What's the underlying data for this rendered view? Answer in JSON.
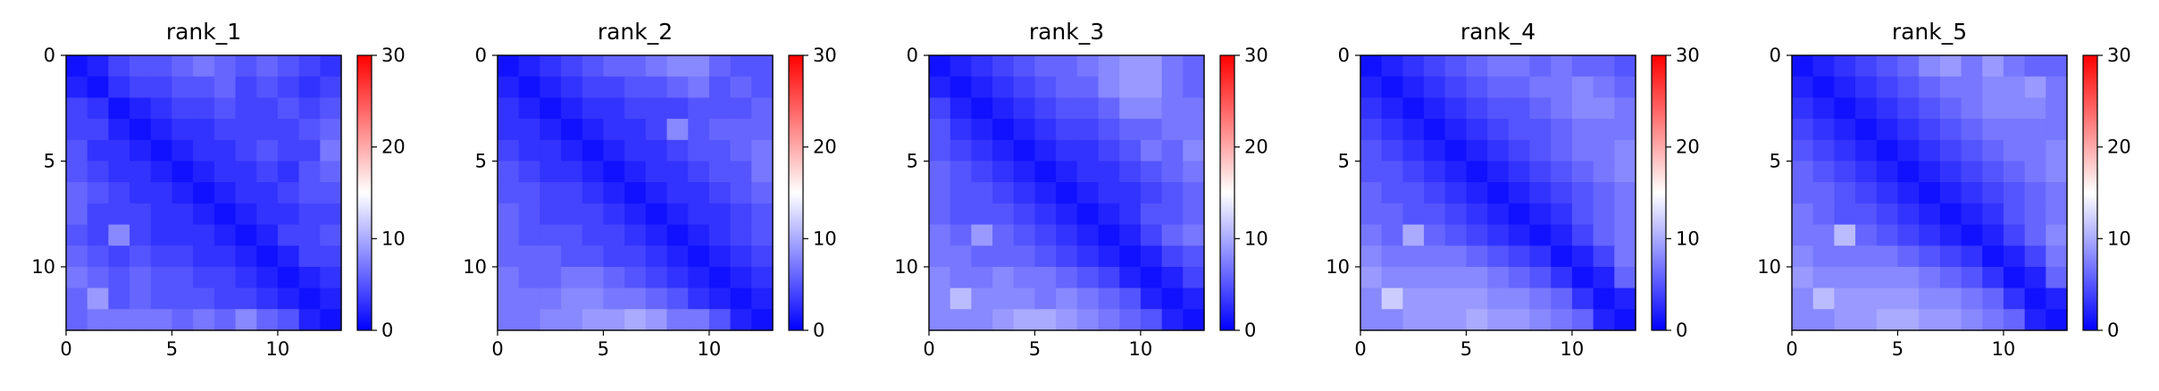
{
  "chart_data": [
    {
      "type": "heatmap",
      "title": "rank_1",
      "size": 13,
      "xticks": [
        "0",
        "5",
        "10"
      ],
      "yticks": [
        "0",
        "5",
        "10"
      ],
      "xlim": [
        0,
        13
      ],
      "ylim": [
        13,
        0
      ],
      "colorbar": {
        "colormap": "bwr",
        "vmin": 0,
        "vmax": 30,
        "ticks": [
          "0",
          "10",
          "20",
          "30"
        ]
      },
      "values": [
        [
          1,
          2,
          4,
          5,
          5,
          6,
          7,
          6,
          5,
          6,
          5,
          4,
          3
        ],
        [
          2,
          1,
          3,
          4,
          4,
          5,
          5,
          6,
          4,
          5,
          4,
          3,
          4
        ],
        [
          4,
          3,
          1,
          2,
          3,
          4,
          4,
          5,
          4,
          4,
          5,
          4,
          5
        ],
        [
          4,
          4,
          2,
          1,
          2,
          3,
          3,
          4,
          4,
          4,
          4,
          5,
          6
        ],
        [
          5,
          3,
          3,
          2,
          1,
          2,
          3,
          3,
          4,
          5,
          4,
          4,
          7
        ],
        [
          5,
          4,
          3,
          3,
          2,
          1,
          2,
          3,
          3,
          4,
          3,
          5,
          6
        ],
        [
          6,
          5,
          4,
          3,
          3,
          2,
          1,
          2,
          3,
          3,
          4,
          5,
          5
        ],
        [
          6,
          4,
          4,
          4,
          3,
          3,
          2,
          1,
          2,
          3,
          3,
          4,
          4
        ],
        [
          5,
          4,
          8,
          4,
          3,
          3,
          3,
          2,
          1,
          2,
          4,
          4,
          5
        ],
        [
          6,
          5,
          4,
          5,
          4,
          4,
          3,
          3,
          2,
          1,
          2,
          4,
          4
        ],
        [
          7,
          6,
          5,
          6,
          5,
          5,
          4,
          4,
          3,
          2,
          1,
          2,
          3
        ],
        [
          6,
          9,
          5,
          6,
          5,
          5,
          5,
          4,
          4,
          3,
          2,
          1,
          2
        ],
        [
          6,
          7,
          7,
          7,
          7,
          6,
          7,
          6,
          8,
          6,
          5,
          2,
          1
        ]
      ]
    },
    {
      "type": "heatmap",
      "title": "rank_2",
      "size": 13,
      "xticks": [
        "0",
        "5",
        "10"
      ],
      "yticks": [
        "0",
        "5",
        "10"
      ],
      "xlim": [
        0,
        13
      ],
      "ylim": [
        13,
        0
      ],
      "colorbar": {
        "colormap": "bwr",
        "vmin": 0,
        "vmax": 30,
        "ticks": [
          "0",
          "10",
          "20",
          "30"
        ]
      },
      "values": [
        [
          1,
          2,
          3,
          4,
          5,
          6,
          6,
          7,
          8,
          8,
          6,
          5,
          5
        ],
        [
          2,
          1,
          2,
          3,
          4,
          4,
          5,
          5,
          6,
          7,
          5,
          6,
          5
        ],
        [
          3,
          2,
          1,
          2,
          3,
          3,
          4,
          4,
          4,
          5,
          5,
          5,
          6
        ],
        [
          3,
          3,
          2,
          1,
          2,
          3,
          3,
          4,
          8,
          5,
          6,
          6,
          6
        ],
        [
          4,
          3,
          3,
          2,
          1,
          2,
          3,
          3,
          4,
          5,
          5,
          6,
          7
        ],
        [
          5,
          4,
          3,
          3,
          2,
          1,
          2,
          3,
          3,
          4,
          5,
          5,
          7
        ],
        [
          5,
          5,
          4,
          4,
          3,
          2,
          1,
          2,
          3,
          3,
          4,
          5,
          6
        ],
        [
          6,
          5,
          4,
          4,
          4,
          3,
          2,
          1,
          2,
          3,
          3,
          4,
          5
        ],
        [
          6,
          5,
          5,
          5,
          4,
          4,
          3,
          2,
          1,
          2,
          3,
          4,
          5
        ],
        [
          6,
          6,
          6,
          5,
          5,
          4,
          4,
          3,
          2,
          1,
          2,
          3,
          4
        ],
        [
          7,
          6,
          6,
          7,
          7,
          6,
          5,
          4,
          3,
          2,
          1,
          2,
          3
        ],
        [
          7,
          7,
          7,
          8,
          8,
          7,
          7,
          6,
          5,
          3,
          2,
          1,
          2
        ],
        [
          7,
          7,
          8,
          8,
          9,
          9,
          10,
          9,
          7,
          7,
          5,
          2,
          1
        ]
      ]
    },
    {
      "type": "heatmap",
      "title": "rank_3",
      "size": 13,
      "xticks": [
        "0",
        "5",
        "10"
      ],
      "yticks": [
        "0",
        "5",
        "10"
      ],
      "xlim": [
        0,
        13
      ],
      "ylim": [
        13,
        0
      ],
      "colorbar": {
        "colormap": "bwr",
        "vmin": 0,
        "vmax": 30,
        "ticks": [
          "0",
          "10",
          "20",
          "30"
        ]
      },
      "values": [
        [
          1,
          2,
          3,
          4,
          5,
          6,
          6,
          7,
          8,
          9,
          9,
          7,
          6
        ],
        [
          2,
          1,
          2,
          3,
          4,
          5,
          6,
          6,
          8,
          9,
          9,
          7,
          6
        ],
        [
          4,
          2,
          1,
          2,
          3,
          4,
          5,
          5,
          6,
          8,
          8,
          7,
          7
        ],
        [
          5,
          3,
          2,
          1,
          2,
          3,
          4,
          4,
          5,
          6,
          6,
          7,
          7
        ],
        [
          5,
          4,
          3,
          2,
          1,
          2,
          3,
          3,
          4,
          5,
          7,
          6,
          8
        ],
        [
          6,
          5,
          4,
          3,
          2,
          1,
          2,
          3,
          3,
          4,
          5,
          6,
          7
        ],
        [
          6,
          5,
          5,
          4,
          3,
          2,
          1,
          2,
          3,
          3,
          4,
          5,
          6
        ],
        [
          6,
          5,
          5,
          5,
          4,
          3,
          2,
          1,
          2,
          3,
          5,
          5,
          6
        ],
        [
          7,
          6,
          9,
          6,
          5,
          4,
          3,
          2,
          1,
          2,
          4,
          6,
          7
        ],
        [
          7,
          7,
          6,
          6,
          6,
          5,
          4,
          3,
          2,
          1,
          2,
          4,
          5
        ],
        [
          8,
          7,
          7,
          8,
          7,
          7,
          6,
          5,
          4,
          2,
          1,
          2,
          4
        ],
        [
          8,
          11,
          8,
          8,
          8,
          7,
          8,
          7,
          6,
          5,
          2,
          1,
          2
        ],
        [
          8,
          8,
          8,
          9,
          10,
          10,
          9,
          8,
          7,
          6,
          5,
          2,
          1
        ]
      ]
    },
    {
      "type": "heatmap",
      "title": "rank_4",
      "size": 13,
      "xticks": [
        "0",
        "5",
        "10"
      ],
      "yticks": [
        "0",
        "5",
        "10"
      ],
      "xlim": [
        0,
        13
      ],
      "ylim": [
        13,
        0
      ],
      "colorbar": {
        "colormap": "bwr",
        "vmin": 0,
        "vmax": 30,
        "ticks": [
          "0",
          "10",
          "20",
          "30"
        ]
      },
      "values": [
        [
          1,
          2,
          3,
          4,
          5,
          6,
          7,
          7,
          6,
          7,
          6,
          6,
          5
        ],
        [
          2,
          1,
          2,
          3,
          4,
          5,
          6,
          6,
          7,
          7,
          8,
          7,
          6
        ],
        [
          3,
          2,
          1,
          2,
          3,
          4,
          5,
          5,
          6,
          7,
          8,
          8,
          7
        ],
        [
          4,
          3,
          2,
          1,
          2,
          3,
          4,
          5,
          5,
          6,
          7,
          7,
          7
        ],
        [
          5,
          4,
          3,
          2,
          1,
          2,
          3,
          4,
          5,
          6,
          7,
          7,
          8
        ],
        [
          5,
          5,
          4,
          3,
          2,
          1,
          2,
          3,
          4,
          5,
          6,
          7,
          8
        ],
        [
          6,
          5,
          5,
          4,
          3,
          2,
          1,
          2,
          3,
          4,
          5,
          6,
          7
        ],
        [
          6,
          6,
          5,
          5,
          4,
          3,
          2,
          1,
          2,
          3,
          5,
          6,
          7
        ],
        [
          7,
          6,
          10,
          6,
          5,
          4,
          3,
          2,
          1,
          2,
          4,
          6,
          7
        ],
        [
          8,
          7,
          7,
          7,
          7,
          6,
          5,
          4,
          3,
          1,
          2,
          4,
          7
        ],
        [
          9,
          8,
          8,
          8,
          8,
          8,
          7,
          6,
          5,
          3,
          1,
          2,
          6
        ],
        [
          8,
          12,
          9,
          9,
          9,
          9,
          8,
          8,
          7,
          6,
          3,
          1,
          2
        ],
        [
          8,
          8,
          9,
          9,
          9,
          10,
          9,
          9,
          8,
          7,
          6,
          2,
          1
        ]
      ]
    },
    {
      "type": "heatmap",
      "title": "rank_5",
      "size": 13,
      "xticks": [
        "0",
        "5",
        "10"
      ],
      "yticks": [
        "0",
        "5",
        "10"
      ],
      "xlim": [
        0,
        13
      ],
      "ylim": [
        13,
        0
      ],
      "colorbar": {
        "colormap": "bwr",
        "vmin": 0,
        "vmax": 30,
        "ticks": [
          "0",
          "10",
          "20",
          "30"
        ]
      },
      "values": [
        [
          1,
          2,
          3,
          4,
          5,
          6,
          8,
          9,
          7,
          9,
          7,
          6,
          6
        ],
        [
          2,
          1,
          2,
          3,
          4,
          5,
          6,
          7,
          7,
          8,
          8,
          9,
          7
        ],
        [
          3,
          2,
          1,
          2,
          3,
          4,
          5,
          6,
          7,
          8,
          8,
          8,
          7
        ],
        [
          4,
          3,
          2,
          1,
          2,
          3,
          4,
          5,
          6,
          7,
          7,
          7,
          7
        ],
        [
          5,
          4,
          3,
          2,
          1,
          2,
          3,
          4,
          5,
          6,
          7,
          7,
          8
        ],
        [
          6,
          5,
          4,
          3,
          2,
          1,
          2,
          3,
          4,
          5,
          6,
          7,
          8
        ],
        [
          6,
          6,
          5,
          4,
          3,
          2,
          1,
          2,
          3,
          4,
          5,
          6,
          7
        ],
        [
          7,
          6,
          5,
          5,
          4,
          3,
          2,
          1,
          2,
          3,
          5,
          6,
          7
        ],
        [
          7,
          7,
          11,
          6,
          5,
          4,
          3,
          2,
          1,
          2,
          4,
          6,
          8
        ],
        [
          8,
          7,
          7,
          7,
          7,
          6,
          5,
          4,
          3,
          1,
          2,
          4,
          7
        ],
        [
          9,
          8,
          8,
          8,
          8,
          8,
          7,
          6,
          5,
          3,
          1,
          2,
          6
        ],
        [
          8,
          11,
          9,
          9,
          9,
          9,
          8,
          8,
          7,
          6,
          3,
          1,
          2
        ],
        [
          8,
          8,
          9,
          9,
          10,
          10,
          9,
          9,
          8,
          7,
          6,
          2,
          1
        ]
      ]
    }
  ]
}
